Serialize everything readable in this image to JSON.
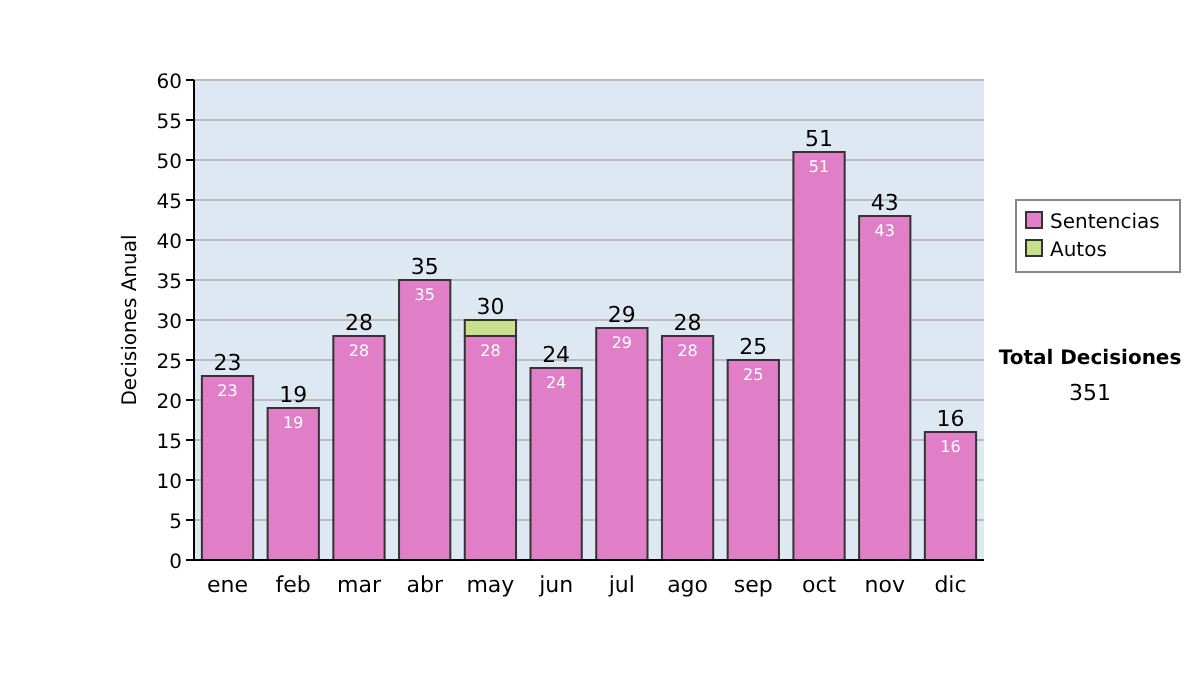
{
  "chart_data": {
    "type": "bar",
    "stacked": true,
    "ylabel": "Decisiones Anual",
    "categories": [
      "ene",
      "feb",
      "mar",
      "abr",
      "may",
      "jun",
      "jul",
      "ago",
      "sep",
      "oct",
      "nov",
      "dic"
    ],
    "series": [
      {
        "name": "Sentencias",
        "color": "#e07fc8",
        "values": [
          23,
          19,
          28,
          35,
          28,
          24,
          29,
          28,
          25,
          51,
          43,
          16
        ],
        "value_labels": [
          "23",
          "19",
          "28",
          "35",
          "28",
          "24",
          "29",
          "28",
          "25",
          "51",
          "43",
          "16"
        ]
      },
      {
        "name": "Autos",
        "color": "#c8e08c",
        "values": [
          0,
          0,
          0,
          0,
          2,
          0,
          0,
          0,
          0,
          0,
          0,
          0
        ]
      }
    ],
    "totals": [
      "23",
      "19",
      "28",
      "35",
      "30",
      "24",
      "29",
      "28",
      "25",
      "51",
      "43",
      "16"
    ],
    "ylim": [
      0,
      60
    ],
    "yticks": [
      0,
      5,
      10,
      15,
      20,
      25,
      30,
      35,
      40,
      45,
      50,
      55,
      60
    ],
    "grid": "y",
    "legend": "right",
    "annotations": [
      "Total Decisiones",
      "351"
    ]
  }
}
